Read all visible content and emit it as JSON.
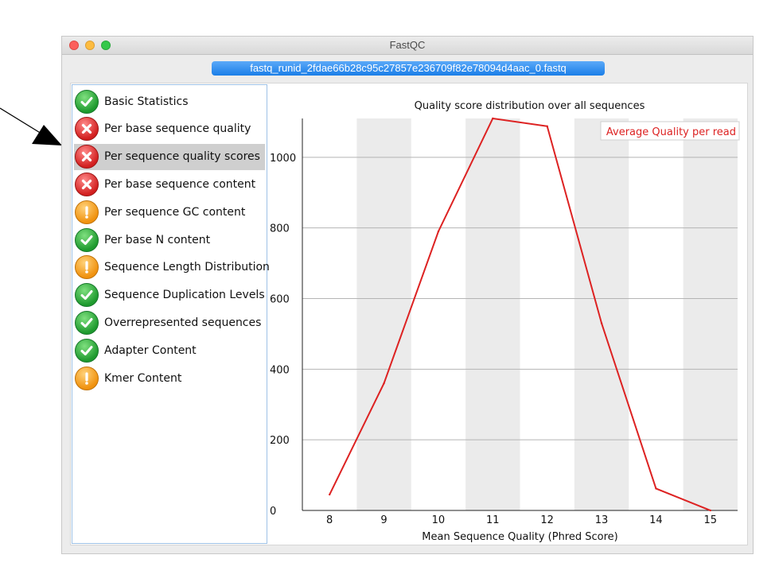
{
  "window": {
    "title": "FastQC",
    "tab_label": "fastq_runid_2fdae66b28c95c27857e236709f82e78094d4aac_0.fastq"
  },
  "sidebar": {
    "items": [
      {
        "label": "Basic Statistics",
        "status": "pass",
        "icon": "check-icon",
        "selected": false
      },
      {
        "label": "Per base sequence quality",
        "status": "fail",
        "icon": "cross-icon",
        "selected": false
      },
      {
        "label": "Per sequence quality scores",
        "status": "fail",
        "icon": "cross-icon",
        "selected": true
      },
      {
        "label": "Per base sequence content",
        "status": "fail",
        "icon": "cross-icon",
        "selected": false
      },
      {
        "label": "Per sequence GC content",
        "status": "warn",
        "icon": "exclamation-icon",
        "selected": false
      },
      {
        "label": "Per base N content",
        "status": "pass",
        "icon": "check-icon",
        "selected": false
      },
      {
        "label": "Sequence Length Distribution",
        "status": "warn",
        "icon": "exclamation-icon",
        "selected": false
      },
      {
        "label": "Sequence Duplication Levels",
        "status": "pass",
        "icon": "check-icon",
        "selected": false
      },
      {
        "label": "Overrepresented sequences",
        "status": "pass",
        "icon": "check-icon",
        "selected": false
      },
      {
        "label": "Adapter Content",
        "status": "pass",
        "icon": "check-icon",
        "selected": false
      },
      {
        "label": "Kmer Content",
        "status": "warn",
        "icon": "exclamation-icon",
        "selected": false
      }
    ]
  },
  "chart_data": {
    "type": "line",
    "title": "Quality score distribution over all sequences",
    "xlabel": "Mean Sequence Quality (Phred Score)",
    "ylabel": "",
    "categories": [
      8,
      9,
      10,
      11,
      12,
      13,
      14,
      15
    ],
    "series": [
      {
        "name": "Average Quality per read",
        "values": [
          45,
          360,
          790,
          1110,
          1088,
          530,
          62,
          0
        ],
        "color": "#dd2222"
      }
    ],
    "yticks": [
      0,
      200,
      400,
      600,
      800,
      1000
    ],
    "ylim": [
      0,
      1110
    ],
    "grid": true,
    "legend": "top-right"
  },
  "colors": {
    "pass": "#1e9a2e",
    "fail": "#d21f1f",
    "warn": "#f0920f",
    "selected": "#cfcfcf",
    "series": "#dd2222",
    "band": "#ebebeb"
  }
}
